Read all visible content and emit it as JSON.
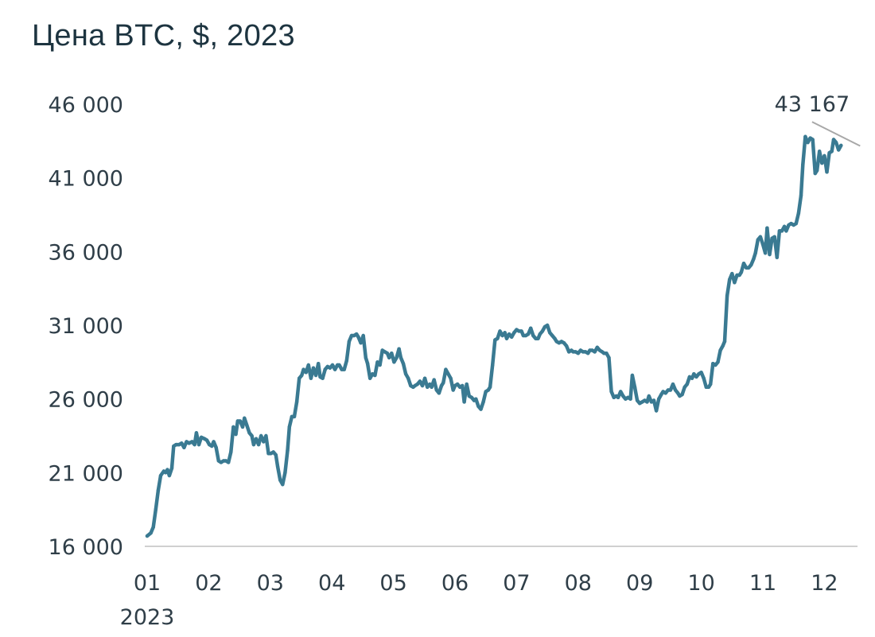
{
  "chart_data": {
    "type": "line",
    "title": "Цена BTC, $, 2023",
    "xlabel": "",
    "ylabel": "",
    "ylim": [
      16000,
      46000
    ],
    "x_range": [
      0,
      11.6
    ],
    "y_ticks": [
      {
        "value": 16000,
        "label": "16 000"
      },
      {
        "value": 21000,
        "label": "21 000"
      },
      {
        "value": 26000,
        "label": "26 000"
      },
      {
        "value": 31000,
        "label": "31 000"
      },
      {
        "value": 36000,
        "label": "36 000"
      },
      {
        "value": 41000,
        "label": "41 000"
      },
      {
        "value": 46000,
        "label": "46 000"
      }
    ],
    "x_ticks": [
      {
        "value": 0,
        "label": "01"
      },
      {
        "value": 1,
        "label": "02"
      },
      {
        "value": 2,
        "label": "03"
      },
      {
        "value": 3,
        "label": "04"
      },
      {
        "value": 4,
        "label": "05"
      },
      {
        "value": 5,
        "label": "06"
      },
      {
        "value": 6,
        "label": "07"
      },
      {
        "value": 7,
        "label": "08"
      },
      {
        "value": 8,
        "label": "09"
      },
      {
        "value": 9,
        "label": "10"
      },
      {
        "value": 10,
        "label": "11"
      },
      {
        "value": 11,
        "label": "12"
      }
    ],
    "x_sublabel": "2023",
    "colors": {
      "line": "#3a7a92",
      "axis": "#d0d0d0",
      "annotation_line": "#a8a8a8"
    },
    "annotation": {
      "label": "43 167",
      "x": 11.58,
      "y": 43167,
      "from_x": 10.8,
      "from_y": 44800
    },
    "series": [
      {
        "name": "BTC",
        "points": [
          [
            0.0,
            16700
          ],
          [
            0.06,
            16900
          ],
          [
            0.1,
            17300
          ],
          [
            0.14,
            18500
          ],
          [
            0.18,
            19800
          ],
          [
            0.22,
            20800
          ],
          [
            0.27,
            21100
          ],
          [
            0.3,
            21000
          ],
          [
            0.33,
            21200
          ],
          [
            0.36,
            20800
          ],
          [
            0.4,
            21300
          ],
          [
            0.43,
            22800
          ],
          [
            0.47,
            22900
          ],
          [
            0.52,
            22900
          ],
          [
            0.56,
            23000
          ],
          [
            0.6,
            22700
          ],
          [
            0.64,
            23100
          ],
          [
            0.68,
            23000
          ],
          [
            0.73,
            23100
          ],
          [
            0.77,
            22900
          ],
          [
            0.8,
            23700
          ],
          [
            0.84,
            22900
          ],
          [
            0.88,
            23400
          ],
          [
            0.93,
            23300
          ],
          [
            0.97,
            23200
          ],
          [
            1.01,
            22900
          ],
          [
            1.05,
            22800
          ],
          [
            1.08,
            23100
          ],
          [
            1.12,
            22700
          ],
          [
            1.16,
            21800
          ],
          [
            1.2,
            21700
          ],
          [
            1.24,
            21800
          ],
          [
            1.28,
            21800
          ],
          [
            1.32,
            21700
          ],
          [
            1.36,
            22400
          ],
          [
            1.4,
            24100
          ],
          [
            1.44,
            23600
          ],
          [
            1.47,
            24500
          ],
          [
            1.51,
            24500
          ],
          [
            1.55,
            24100
          ],
          [
            1.58,
            24700
          ],
          [
            1.62,
            24200
          ],
          [
            1.66,
            23700
          ],
          [
            1.7,
            23500
          ],
          [
            1.73,
            22900
          ],
          [
            1.77,
            23300
          ],
          [
            1.81,
            22900
          ],
          [
            1.85,
            23500
          ],
          [
            1.89,
            23100
          ],
          [
            1.93,
            23500
          ],
          [
            1.97,
            22300
          ],
          [
            2.01,
            22300
          ],
          [
            2.05,
            22400
          ],
          [
            2.09,
            22200
          ],
          [
            2.12,
            21400
          ],
          [
            2.16,
            20500
          ],
          [
            2.2,
            20200
          ],
          [
            2.24,
            21000
          ],
          [
            2.28,
            22500
          ],
          [
            2.31,
            24100
          ],
          [
            2.35,
            24800
          ],
          [
            2.39,
            24800
          ],
          [
            2.43,
            25800
          ],
          [
            2.47,
            27400
          ],
          [
            2.51,
            27600
          ],
          [
            2.54,
            28000
          ],
          [
            2.58,
            27800
          ],
          [
            2.62,
            28300
          ],
          [
            2.66,
            27400
          ],
          [
            2.7,
            28100
          ],
          [
            2.74,
            27600
          ],
          [
            2.78,
            28400
          ],
          [
            2.81,
            27500
          ],
          [
            2.85,
            27400
          ],
          [
            2.89,
            28000
          ],
          [
            2.93,
            28200
          ],
          [
            2.97,
            28100
          ],
          [
            3.01,
            28300
          ],
          [
            3.05,
            28000
          ],
          [
            3.09,
            28300
          ],
          [
            3.12,
            28300
          ],
          [
            3.16,
            28000
          ],
          [
            3.2,
            28000
          ],
          [
            3.24,
            28600
          ],
          [
            3.28,
            29900
          ],
          [
            3.32,
            30300
          ],
          [
            3.36,
            30300
          ],
          [
            3.4,
            30400
          ],
          [
            3.43,
            30200
          ],
          [
            3.47,
            29800
          ],
          [
            3.51,
            30300
          ],
          [
            3.55,
            28800
          ],
          [
            3.58,
            28400
          ],
          [
            3.62,
            27400
          ],
          [
            3.66,
            27700
          ],
          [
            3.7,
            27600
          ],
          [
            3.74,
            28500
          ],
          [
            3.78,
            28300
          ],
          [
            3.82,
            29300
          ],
          [
            3.86,
            29200
          ],
          [
            3.9,
            29100
          ],
          [
            3.93,
            28800
          ],
          [
            3.97,
            29100
          ],
          [
            4.01,
            28500
          ],
          [
            4.05,
            28800
          ],
          [
            4.09,
            29400
          ],
          [
            4.12,
            28800
          ],
          [
            4.16,
            28400
          ],
          [
            4.2,
            27700
          ],
          [
            4.24,
            27400
          ],
          [
            4.28,
            26900
          ],
          [
            4.32,
            26800
          ],
          [
            4.35,
            26900
          ],
          [
            4.39,
            27000
          ],
          [
            4.43,
            27200
          ],
          [
            4.47,
            26900
          ],
          [
            4.51,
            27400
          ],
          [
            4.55,
            26800
          ],
          [
            4.59,
            27000
          ],
          [
            4.62,
            26800
          ],
          [
            4.66,
            27300
          ],
          [
            4.7,
            26600
          ],
          [
            4.74,
            26400
          ],
          [
            4.78,
            26900
          ],
          [
            4.81,
            27100
          ],
          [
            4.85,
            28000
          ],
          [
            4.89,
            27700
          ],
          [
            4.93,
            27400
          ],
          [
            4.97,
            26600
          ],
          [
            5.0,
            26900
          ],
          [
            5.04,
            27000
          ],
          [
            5.08,
            26800
          ],
          [
            5.12,
            26900
          ],
          [
            5.15,
            25800
          ],
          [
            5.19,
            27000
          ],
          [
            5.23,
            26200
          ],
          [
            5.27,
            26100
          ],
          [
            5.31,
            25900
          ],
          [
            5.34,
            26000
          ],
          [
            5.38,
            25500
          ],
          [
            5.42,
            25300
          ],
          [
            5.46,
            25800
          ],
          [
            5.5,
            26500
          ],
          [
            5.54,
            26600
          ],
          [
            5.57,
            26800
          ],
          [
            5.61,
            28300
          ],
          [
            5.65,
            30000
          ],
          [
            5.69,
            30100
          ],
          [
            5.73,
            30600
          ],
          [
            5.77,
            30300
          ],
          [
            5.81,
            30500
          ],
          [
            5.84,
            30100
          ],
          [
            5.88,
            30400
          ],
          [
            5.92,
            30200
          ],
          [
            5.96,
            30500
          ],
          [
            6.0,
            30700
          ],
          [
            6.04,
            30600
          ],
          [
            6.08,
            30600
          ],
          [
            6.11,
            30300
          ],
          [
            6.15,
            30300
          ],
          [
            6.19,
            30400
          ],
          [
            6.23,
            30800
          ],
          [
            6.27,
            30300
          ],
          [
            6.31,
            30100
          ],
          [
            6.35,
            30100
          ],
          [
            6.38,
            30400
          ],
          [
            6.42,
            30600
          ],
          [
            6.46,
            30900
          ],
          [
            6.5,
            31000
          ],
          [
            6.54,
            30500
          ],
          [
            6.58,
            30300
          ],
          [
            6.62,
            30100
          ],
          [
            6.65,
            29900
          ],
          [
            6.69,
            29800
          ],
          [
            6.73,
            29900
          ],
          [
            6.77,
            29800
          ],
          [
            6.81,
            29600
          ],
          [
            6.85,
            29200
          ],
          [
            6.89,
            29300
          ],
          [
            6.92,
            29200
          ],
          [
            6.96,
            29200
          ],
          [
            7.0,
            29100
          ],
          [
            7.04,
            29300
          ],
          [
            7.08,
            29200
          ],
          [
            7.12,
            29200
          ],
          [
            7.16,
            29100
          ],
          [
            7.19,
            29300
          ],
          [
            7.23,
            29300
          ],
          [
            7.27,
            29200
          ],
          [
            7.31,
            29500
          ],
          [
            7.35,
            29300
          ],
          [
            7.39,
            29200
          ],
          [
            7.42,
            29100
          ],
          [
            7.46,
            29100
          ],
          [
            7.5,
            28800
          ],
          [
            7.54,
            26500
          ],
          [
            7.58,
            26100
          ],
          [
            7.62,
            26200
          ],
          [
            7.65,
            26100
          ],
          [
            7.69,
            26500
          ],
          [
            7.73,
            26200
          ],
          [
            7.77,
            26000
          ],
          [
            7.81,
            26100
          ],
          [
            7.85,
            26000
          ],
          [
            7.88,
            27600
          ],
          [
            7.92,
            26800
          ],
          [
            7.96,
            25900
          ],
          [
            8.0,
            25700
          ],
          [
            8.04,
            25800
          ],
          [
            8.08,
            25900
          ],
          [
            8.12,
            25800
          ],
          [
            8.15,
            26200
          ],
          [
            8.19,
            25800
          ],
          [
            8.23,
            25900
          ],
          [
            8.27,
            25200
          ],
          [
            8.31,
            26000
          ],
          [
            8.35,
            26300
          ],
          [
            8.38,
            26500
          ],
          [
            8.42,
            26400
          ],
          [
            8.46,
            26600
          ],
          [
            8.5,
            26600
          ],
          [
            8.54,
            27000
          ],
          [
            8.58,
            26600
          ],
          [
            8.62,
            26400
          ],
          [
            8.65,
            26200
          ],
          [
            8.69,
            26300
          ],
          [
            8.73,
            26800
          ],
          [
            8.77,
            27000
          ],
          [
            8.81,
            27500
          ],
          [
            8.85,
            27400
          ],
          [
            8.88,
            27700
          ],
          [
            8.92,
            27500
          ],
          [
            8.96,
            27700
          ],
          [
            9.0,
            27800
          ],
          [
            9.04,
            27400
          ],
          [
            9.08,
            26800
          ],
          [
            9.12,
            26800
          ],
          [
            9.15,
            27000
          ],
          [
            9.19,
            28400
          ],
          [
            9.23,
            28300
          ],
          [
            9.27,
            28500
          ],
          [
            9.31,
            29300
          ],
          [
            9.35,
            29600
          ],
          [
            9.38,
            29900
          ],
          [
            9.42,
            33000
          ],
          [
            9.46,
            34100
          ],
          [
            9.5,
            34500
          ],
          [
            9.54,
            33900
          ],
          [
            9.58,
            34400
          ],
          [
            9.62,
            34400
          ],
          [
            9.65,
            34600
          ],
          [
            9.69,
            35200
          ],
          [
            9.73,
            34900
          ],
          [
            9.77,
            34900
          ],
          [
            9.81,
            35100
          ],
          [
            9.85,
            35500
          ],
          [
            9.88,
            35900
          ],
          [
            9.92,
            36800
          ],
          [
            9.96,
            37000
          ],
          [
            10.0,
            36500
          ],
          [
            10.04,
            35900
          ],
          [
            10.07,
            37600
          ],
          [
            10.11,
            35800
          ],
          [
            10.15,
            36900
          ],
          [
            10.19,
            37000
          ],
          [
            10.23,
            35600
          ],
          [
            10.27,
            37400
          ],
          [
            10.31,
            37400
          ],
          [
            10.35,
            37700
          ],
          [
            10.38,
            37400
          ],
          [
            10.42,
            37800
          ],
          [
            10.46,
            37900
          ],
          [
            10.5,
            37800
          ],
          [
            10.54,
            37900
          ],
          [
            10.58,
            38600
          ],
          [
            10.62,
            39800
          ],
          [
            10.65,
            41900
          ],
          [
            10.69,
            43800
          ],
          [
            10.73,
            43400
          ],
          [
            10.77,
            43700
          ],
          [
            10.81,
            43600
          ],
          [
            10.85,
            41300
          ],
          [
            10.88,
            41500
          ],
          [
            10.92,
            42800
          ],
          [
            10.96,
            42000
          ],
          [
            11.0,
            42500
          ],
          [
            11.04,
            41400
          ],
          [
            11.08,
            42700
          ],
          [
            11.12,
            42800
          ],
          [
            11.15,
            43600
          ],
          [
            11.19,
            43400
          ],
          [
            11.23,
            42900
          ],
          [
            11.27,
            43200
          ]
        ]
      }
    ]
  }
}
